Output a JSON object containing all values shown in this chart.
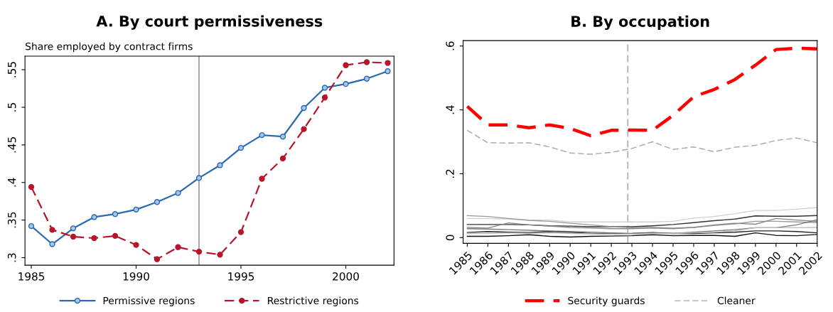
{
  "chart_data": [
    {
      "type": "line",
      "title": "A. By court permissiveness",
      "ylabel": "Share employed by contract firms",
      "x": [
        1985,
        1986,
        1987,
        1988,
        1989,
        1990,
        1991,
        1992,
        1993,
        1994,
        1995,
        1996,
        1997,
        1998,
        1999,
        2000,
        2001,
        2002
      ],
      "series": [
        {
          "name": "Permissive regions",
          "color": "#2a6ab4",
          "line_style": "solid",
          "values": [
            0.342,
            0.318,
            0.339,
            0.354,
            0.358,
            0.364,
            0.374,
            0.386,
            0.406,
            0.423,
            0.446,
            0.463,
            0.461,
            0.499,
            0.526,
            0.531,
            0.538,
            0.548
          ]
        },
        {
          "name": "Restrictive regions",
          "color": "#b5162b",
          "line_style": "dashed",
          "values": [
            0.394,
            0.337,
            0.328,
            0.326,
            0.329,
            0.317,
            0.298,
            0.314,
            0.308,
            0.304,
            0.334,
            0.405,
            0.432,
            0.471,
            0.513,
            0.556,
            0.56,
            0.559
          ]
        }
      ],
      "marker": "circle",
      "xlim": [
        1984.7,
        2002.3
      ],
      "ylim": [
        0.29,
        0.568
      ],
      "xticks": [
        1985,
        1990,
        1995,
        2000
      ],
      "yticks": [
        {
          "value": 0.3,
          "label": ".3"
        },
        {
          "value": 0.35,
          "label": ".35"
        },
        {
          "value": 0.4,
          "label": ".4"
        },
        {
          "value": 0.45,
          "label": ".45"
        },
        {
          "value": 0.5,
          "label": ".5"
        },
        {
          "value": 0.55,
          "label": ".55"
        }
      ],
      "ref_lines": [
        {
          "axis": "x",
          "value": 1993,
          "color": "#999999",
          "line_style": "solid"
        }
      ],
      "grid": false,
      "legend": "bottom"
    },
    {
      "type": "line",
      "title": "B. By occupation",
      "x": [
        1985,
        1986,
        1987,
        1988,
        1989,
        1990,
        1991,
        1992,
        1993,
        1994,
        1995,
        1996,
        1997,
        1998,
        1999,
        2000,
        2001,
        2002
      ],
      "series": [
        {
          "name": "Security guards",
          "color": "#ff0000",
          "line_style": "dashed",
          "values": [
            0.411,
            0.353,
            0.353,
            0.344,
            0.353,
            0.342,
            0.319,
            0.336,
            0.337,
            0.336,
            0.383,
            0.441,
            0.464,
            0.495,
            0.54,
            0.589,
            0.593,
            0.591
          ]
        },
        {
          "name": "Cleaner",
          "color": "#a6a6a6",
          "line_style": "dashed",
          "values": [
            0.336,
            0.297,
            0.296,
            0.297,
            0.284,
            0.265,
            0.261,
            0.267,
            0.279,
            0.3,
            0.276,
            0.284,
            0.269,
            0.283,
            0.289,
            0.304,
            0.312,
            0.297
          ]
        },
        {
          "color": "#d0d0d0",
          "line_style": "solid",
          "values": [
            0.06,
            0.06,
            0.058,
            0.055,
            0.055,
            0.049,
            0.049,
            0.049,
            0.049,
            0.049,
            0.051,
            0.061,
            0.066,
            0.075,
            0.085,
            0.085,
            0.089,
            0.094
          ]
        },
        {
          "color": "#333333",
          "line_style": "solid",
          "values": [
            0.041,
            0.041,
            0.041,
            0.04,
            0.037,
            0.036,
            0.034,
            0.034,
            0.034,
            0.037,
            0.041,
            0.047,
            0.053,
            0.058,
            0.068,
            0.067,
            0.067,
            0.069
          ]
        },
        {
          "color": "#999999",
          "line_style": "solid",
          "values": [
            0.069,
            0.066,
            0.06,
            0.054,
            0.051,
            0.045,
            0.04,
            0.034,
            0.031,
            0.032,
            0.03,
            0.032,
            0.038,
            0.043,
            0.051,
            0.051,
            0.049,
            0.047
          ]
        },
        {
          "color": "#888888",
          "line_style": "solid",
          "values": [
            0.032,
            0.03,
            0.046,
            0.04,
            0.036,
            0.032,
            0.03,
            0.028,
            0.028,
            0.03,
            0.028,
            0.032,
            0.04,
            0.045,
            0.042,
            0.06,
            0.055,
            0.051
          ]
        },
        {
          "color": "#111111",
          "line_style": "solid",
          "values": [
            0.004,
            0.004,
            0.006,
            0.009,
            0.004,
            0.002,
            0.004,
            0.005,
            0.006,
            0.009,
            0.006,
            0.007,
            0.007,
            0.004,
            0.015,
            0.007,
            0.006,
            0.01
          ]
        },
        {
          "color": "#222222",
          "line_style": "solid",
          "values": [
            0.016,
            0.019,
            0.017,
            0.016,
            0.019,
            0.017,
            0.013,
            0.012,
            0.013,
            0.016,
            0.013,
            0.013,
            0.015,
            0.017,
            0.021,
            0.021,
            0.019,
            0.015
          ]
        },
        {
          "color": "#777777",
          "line_style": "solid",
          "values": [
            0.028,
            0.027,
            0.025,
            0.023,
            0.021,
            0.019,
            0.017,
            0.015,
            0.013,
            0.015,
            0.013,
            0.017,
            0.021,
            0.025,
            0.031,
            0.031,
            0.04,
            0.056
          ]
        },
        {
          "color": "#bbbbbb",
          "line_style": "solid",
          "values": [
            0.013,
            0.013,
            0.015,
            0.013,
            0.015,
            0.013,
            0.012,
            0.011,
            0.011,
            0.013,
            0.013,
            0.015,
            0.017,
            0.021,
            0.031,
            0.031,
            0.031,
            0.032
          ]
        }
      ],
      "marker": "none",
      "xlim": [
        1984.8,
        2002
      ],
      "ylim": [
        -0.018,
        0.617
      ],
      "xticks": [
        1985,
        1986,
        1987,
        1988,
        1989,
        1990,
        1991,
        1992,
        1993,
        1994,
        1995,
        1996,
        1997,
        1998,
        1999,
        2000,
        2001,
        2002
      ],
      "yticks": [
        {
          "value": 0,
          "label": "0"
        },
        {
          "value": 0.2,
          "label": ".2"
        },
        {
          "value": 0.4,
          "label": ".4"
        },
        {
          "value": 0.6,
          "label": ".6"
        }
      ],
      "ref_lines": [
        {
          "axis": "x",
          "value": 1992.8,
          "color": "#aaaaaa",
          "line_style": "dashed"
        }
      ],
      "grid": false,
      "legend": "bottom"
    }
  ]
}
